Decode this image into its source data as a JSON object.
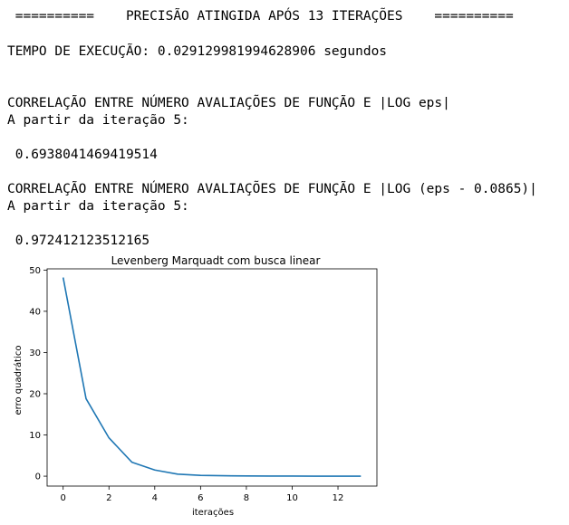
{
  "output": {
    "line1": " ==========    PRECISÃO ATINGIDA APÓS 13 ITERAÇÕES    ==========",
    "line2": "TEMPO DE EXECUÇÃO: 0.029129981994628906 segundos",
    "line3": "CORRELAÇÃO ENTRE NÚMERO AVALIAÇÕES DE FUNÇÃO E |LOG eps|",
    "line4": "A partir da iteração 5:",
    "line5": " 0.6938041469419514",
    "line6": "CORRELAÇÃO ENTRE NÚMERO AVALIAÇÕES DE FUNÇÃO E |LOG (eps - 0.0865)|",
    "line7": "A partir da iteração 5:",
    "line8": " 0.972412123512165"
  },
  "chart_data": {
    "type": "line",
    "title": "Levenberg Marquadt com busca linear",
    "xlabel": "iterações",
    "ylabel": "erro quadrático",
    "xlim": [
      -0.7,
      13.7
    ],
    "ylim": [
      -2.4,
      50.3
    ],
    "xticks": [
      0,
      2,
      4,
      6,
      8,
      10,
      12
    ],
    "yticks": [
      0,
      10,
      20,
      30,
      40,
      50
    ],
    "grid": false,
    "series": [
      {
        "color": "#1f77b4",
        "x": [
          0,
          1,
          2,
          3,
          4,
          5,
          6,
          7,
          8,
          9,
          10,
          11,
          12,
          13
        ],
        "values": [
          48.2,
          18.8,
          9.3,
          3.4,
          1.5,
          0.5,
          0.2,
          0.1,
          0.05,
          0.03,
          0.02,
          0.01,
          0.01,
          0.01
        ]
      }
    ]
  }
}
